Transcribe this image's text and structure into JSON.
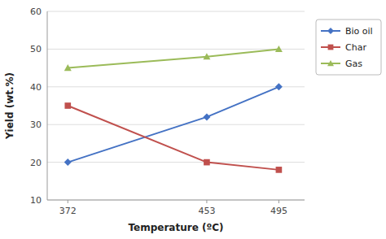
{
  "chart_data": {
    "type": "line",
    "x": [
      372,
      453,
      495
    ],
    "xlabel": "Temperature (ºC)",
    "ylabel": "Yield (wt.%)",
    "xlim": [
      360,
      510
    ],
    "xticks": [
      372,
      453,
      495
    ],
    "ylim": [
      10,
      60
    ],
    "yticks": [
      10,
      20,
      30,
      40,
      50,
      60
    ],
    "grid": "y",
    "legend": "right",
    "series": [
      {
        "name": "Bio oil",
        "color": "#4472C4",
        "marker": "diamond",
        "values": [
          20,
          32,
          40
        ]
      },
      {
        "name": "Char",
        "color": "#C0504D",
        "marker": "square",
        "values": [
          35,
          20,
          18
        ]
      },
      {
        "name": "Gas",
        "color": "#9BBB59",
        "marker": "triangle",
        "values": [
          45,
          48,
          50
        ]
      }
    ]
  }
}
